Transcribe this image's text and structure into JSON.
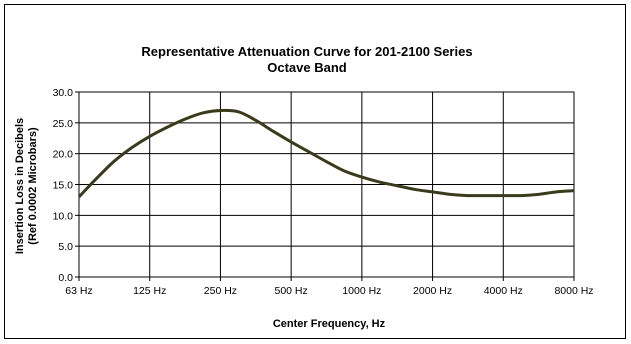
{
  "chart_data": {
    "type": "line",
    "title": "Representative Attenuation Curve for 201-2100 Series",
    "subtitle": "Octave Band",
    "xlabel": "Center Frequency, Hz",
    "ylabel": "Insertion Loss in Decibels",
    "ylabel2": "(Ref 0.0002 Microbars)",
    "categories": [
      "63 Hz",
      "125 Hz",
      "250 Hz",
      "500 Hz",
      "1000 Hz",
      "2000 Hz",
      "4000 Hz",
      "8000 Hz"
    ],
    "y_ticks": [
      "0.0",
      "5.0",
      "10.0",
      "15.0",
      "20.0",
      "25.0",
      "30.0"
    ],
    "ylim": [
      0,
      30
    ],
    "grid": true,
    "legend": "none",
    "series": [
      {
        "color": "#3a3a1c",
        "x": [
          0,
          0.25,
          0.5,
          0.75,
          1,
          1.25,
          1.5,
          1.75,
          2,
          2.25,
          2.5,
          2.75,
          3,
          3.25,
          3.5,
          3.75,
          4,
          4.25,
          4.5,
          4.75,
          5,
          5.25,
          5.5,
          5.75,
          6,
          6.25,
          6.5,
          6.75,
          7
        ],
        "values": [
          13.0,
          16.0,
          18.8,
          21.0,
          22.8,
          24.3,
          25.6,
          26.6,
          27.0,
          26.8,
          25.4,
          23.6,
          21.9,
          20.3,
          18.7,
          17.2,
          16.2,
          15.4,
          14.8,
          14.2,
          13.8,
          13.4,
          13.2,
          13.2,
          13.2,
          13.2,
          13.4,
          13.8,
          14.0
        ]
      }
    ]
  }
}
